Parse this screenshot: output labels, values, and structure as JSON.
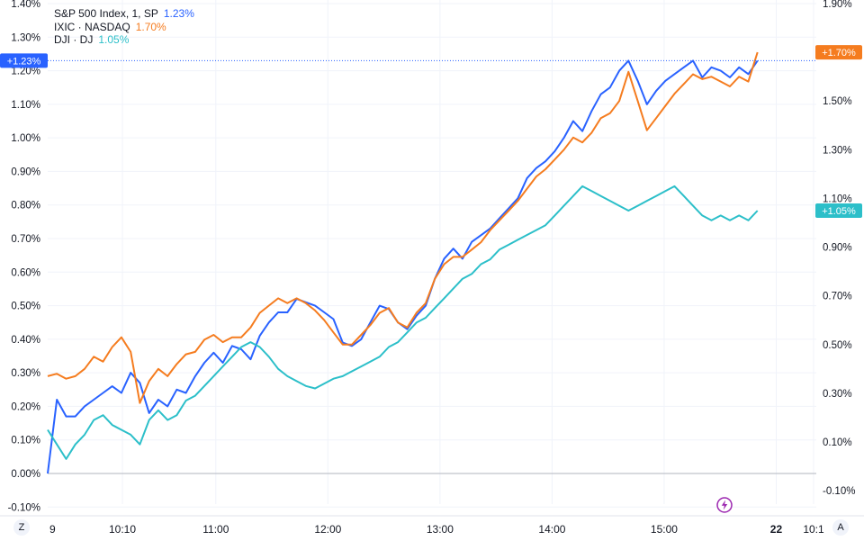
{
  "chart_data": {
    "type": "line",
    "xlabel": "",
    "ylabel": "",
    "x_start": "09:30",
    "x_end": "15:50",
    "x_axis_range": [
      "09:30",
      "16:20"
    ],
    "x_ticks": [
      {
        "time": "09:30",
        "label": "9"
      },
      {
        "time": "10:10",
        "label": "10:10"
      },
      {
        "time": "11:00",
        "label": "11:00"
      },
      {
        "time": "12:00",
        "label": "12:00"
      },
      {
        "time": "13:00",
        "label": "13:00"
      },
      {
        "time": "14:00",
        "label": "14:00"
      },
      {
        "time": "15:00",
        "label": "15:00"
      },
      {
        "time": "16:00",
        "label": "22"
      },
      {
        "time": "16:20",
        "label": "10:1"
      }
    ],
    "left_axis": {
      "unit": "%",
      "range": [
        -0.133,
        1.403
      ],
      "ticks": [
        "-0.10%",
        "0.00%",
        "0.10%",
        "0.20%",
        "0.30%",
        "0.40%",
        "0.50%",
        "0.60%",
        "0.70%",
        "0.80%",
        "0.90%",
        "1.00%",
        "1.10%",
        "1.20%",
        "1.30%",
        "1.40%"
      ],
      "tick_values": [
        -0.1,
        0,
        0.1,
        0.2,
        0.3,
        0.4,
        0.5,
        0.6,
        0.7,
        0.8,
        0.9,
        1.0,
        1.1,
        1.2,
        1.3,
        1.4
      ]
    },
    "right_axis": {
      "unit": "%",
      "range": [
        -0.13,
        1.9
      ],
      "ticks": [
        "-0.10%",
        "0.10%",
        "0.30%",
        "0.50%",
        "0.70%",
        "0.90%",
        "1.10%",
        "1.30%",
        "1.50%",
        "1.70%",
        "1.90%"
      ],
      "tick_values": [
        -0.1,
        0.1,
        0.3,
        0.5,
        0.7,
        0.9,
        1.1,
        1.3,
        1.5,
        1.7,
        1.9
      ]
    },
    "grid": true,
    "legend_position": "top-left",
    "series": [
      {
        "name": "S&P 500 Index, 1, SP",
        "legend_value": "1.23%",
        "badge": "+1.23%",
        "axis": "left",
        "color": "#2962ff",
        "values": [
          0,
          0.22,
          0.17,
          0.17,
          0.2,
          0.22,
          0.24,
          0.26,
          0.24,
          0.3,
          0.27,
          0.18,
          0.22,
          0.2,
          0.25,
          0.24,
          0.29,
          0.33,
          0.36,
          0.33,
          0.38,
          0.37,
          0.34,
          0.41,
          0.45,
          0.48,
          0.48,
          0.52,
          0.51,
          0.5,
          0.48,
          0.46,
          0.39,
          0.38,
          0.4,
          0.45,
          0.5,
          0.49,
          0.45,
          0.43,
          0.47,
          0.5,
          0.58,
          0.64,
          0.67,
          0.64,
          0.69,
          0.71,
          0.73,
          0.76,
          0.79,
          0.82,
          0.88,
          0.91,
          0.93,
          0.96,
          1.0,
          1.05,
          1.02,
          1.08,
          1.13,
          1.15,
          1.2,
          1.23,
          1.17,
          1.1,
          1.14,
          1.17,
          1.19,
          1.21,
          1.23,
          1.18,
          1.21,
          1.2,
          1.18,
          1.21,
          1.19,
          1.23
        ]
      },
      {
        "name": "IXIC · NASDAQ",
        "legend_value": "1.70%",
        "badge": "+1.70%",
        "axis": "right",
        "color": "#f57c1f",
        "values": [
          0.37,
          0.38,
          0.36,
          0.37,
          0.4,
          0.45,
          0.43,
          0.49,
          0.53,
          0.47,
          0.26,
          0.35,
          0.4,
          0.37,
          0.42,
          0.46,
          0.47,
          0.52,
          0.54,
          0.51,
          0.53,
          0.53,
          0.57,
          0.63,
          0.66,
          0.69,
          0.67,
          0.69,
          0.67,
          0.64,
          0.6,
          0.55,
          0.5,
          0.5,
          0.54,
          0.58,
          0.63,
          0.65,
          0.59,
          0.57,
          0.63,
          0.67,
          0.77,
          0.83,
          0.86,
          0.86,
          0.89,
          0.92,
          0.97,
          1.01,
          1.05,
          1.09,
          1.14,
          1.19,
          1.22,
          1.26,
          1.3,
          1.35,
          1.33,
          1.37,
          1.43,
          1.45,
          1.5,
          1.62,
          1.5,
          1.38,
          1.43,
          1.48,
          1.53,
          1.57,
          1.61,
          1.59,
          1.6,
          1.58,
          1.56,
          1.6,
          1.58,
          1.7
        ]
      },
      {
        "name": "DJI · DJ",
        "legend_value": "1.05%",
        "badge": "+1.05%",
        "axis": "right",
        "color": "#2cbfc9",
        "values": [
          0.15,
          0.09,
          0.03,
          0.09,
          0.13,
          0.19,
          0.21,
          0.17,
          0.15,
          0.13,
          0.09,
          0.19,
          0.23,
          0.19,
          0.21,
          0.27,
          0.29,
          0.33,
          0.37,
          0.41,
          0.45,
          0.49,
          0.51,
          0.49,
          0.45,
          0.4,
          0.37,
          0.35,
          0.33,
          0.32,
          0.34,
          0.36,
          0.37,
          0.39,
          0.41,
          0.43,
          0.45,
          0.49,
          0.51,
          0.55,
          0.59,
          0.61,
          0.65,
          0.69,
          0.73,
          0.77,
          0.79,
          0.83,
          0.85,
          0.89,
          0.91,
          0.93,
          0.95,
          0.97,
          0.99,
          1.03,
          1.07,
          1.11,
          1.15,
          1.13,
          1.11,
          1.09,
          1.07,
          1.05,
          1.07,
          1.09,
          1.11,
          1.13,
          1.15,
          1.11,
          1.07,
          1.03,
          1.01,
          1.03,
          1.01,
          1.03,
          1.01,
          1.05
        ]
      }
    ]
  },
  "scale_buttons": {
    "left": "Z",
    "right": "A"
  }
}
